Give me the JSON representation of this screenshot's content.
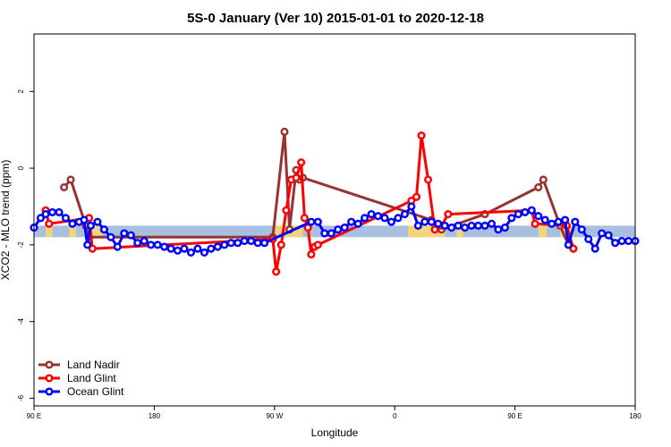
{
  "chart_data": {
    "type": "line",
    "title": "5S-0 January (Ver 10)   2015-01-01 to 2020-12-18",
    "xlabel": "Longitude",
    "ylabel": "XCO2 - MLO trend (ppm)",
    "xlim": [
      -90,
      270
    ],
    "ylim": [
      -6.2,
      3.5
    ],
    "x_ticks": [
      {
        "value": -90,
        "label": "90 E"
      },
      {
        "value": -18,
        "label": "180"
      },
      {
        "value": 54,
        "label": "90 W"
      },
      {
        "value": 126,
        "label": "0"
      },
      {
        "value": 198,
        "label": "90 E"
      },
      {
        "value": 270,
        "label": "180"
      }
    ],
    "y_ticks": [
      {
        "value": 2,
        "label": "2"
      },
      {
        "value": 0,
        "label": "0"
      },
      {
        "value": -2,
        "label": "-2"
      },
      {
        "value": -4,
        "label": "-4"
      },
      {
        "value": -6,
        "label": "-6"
      }
    ],
    "grid": false,
    "legend_position": "bottom-left",
    "band": {
      "y_range": [
        -1.5,
        -1.8
      ],
      "ocean_color": "#a8bfdf",
      "land_color": "#f2d57a"
    },
    "land_segments": [
      [
        -83,
        -79
      ],
      [
        -69,
        -65
      ],
      [
        -56,
        -49
      ],
      [
        53,
        71
      ],
      [
        134,
        156
      ],
      [
        163,
        167
      ],
      [
        212,
        217
      ],
      [
        225,
        233
      ]
    ],
    "series": [
      {
        "name": "Land Nadir",
        "color": "#993333",
        "x": [
          -72,
          -68,
          -59,
          -57,
          53,
          60,
          63,
          67,
          69,
          71,
          148,
          154,
          180,
          212,
          215,
          225,
          230
        ],
        "y": [
          -0.5,
          -0.3,
          -1.5,
          -1.8,
          -1.8,
          0.95,
          -1.6,
          -0.05,
          -0.3,
          -0.25,
          -1.35,
          -1.6,
          -1.2,
          -0.5,
          -0.3,
          -1.5,
          -2.0
        ]
      },
      {
        "name": "Land Glint",
        "color": "#ff0000",
        "x": [
          -83,
          -81,
          -57,
          -55,
          53,
          55,
          58,
          61,
          64,
          67,
          70,
          72,
          74,
          76,
          78,
          80,
          136,
          139,
          142,
          146,
          150,
          154,
          158,
          208,
          210,
          229,
          233
        ],
        "y": [
          -1.1,
          -1.45,
          -1.3,
          -2.1,
          -1.85,
          -2.7,
          -2.0,
          -1.1,
          -0.3,
          -0.25,
          0.15,
          -1.3,
          -1.55,
          -2.25,
          -2.05,
          -2.0,
          -0.85,
          -0.75,
          0.85,
          -0.3,
          -1.6,
          -1.5,
          -1.2,
          -1.1,
          -1.45,
          -1.5,
          -2.1
        ]
      },
      {
        "name": "Ocean Glint",
        "color": "#0000ff",
        "x": [
          -90,
          -86,
          -83,
          -79,
          -75,
          -71,
          -67,
          -63,
          -60,
          -58,
          -56,
          -52,
          -48,
          -44,
          -40,
          -36,
          -32,
          -28,
          -24,
          -20,
          -16,
          -12,
          -8,
          -4,
          0,
          4,
          8,
          12,
          16,
          20,
          24,
          28,
          32,
          36,
          40,
          44,
          48,
          76,
          80,
          84,
          88,
          92,
          96,
          100,
          104,
          108,
          112,
          116,
          120,
          124,
          128,
          132,
          136,
          140,
          144,
          148,
          152,
          156,
          160,
          164,
          168,
          172,
          176,
          180,
          184,
          188,
          192,
          196,
          200,
          204,
          208,
          212,
          216,
          220,
          224,
          228,
          230,
          234,
          238,
          242,
          246,
          250,
          254,
          258,
          262,
          266,
          270
        ],
        "y": [
          -1.55,
          -1.3,
          -1.2,
          -1.15,
          -1.15,
          -1.3,
          -1.45,
          -1.4,
          -1.35,
          -2.0,
          -1.5,
          -1.4,
          -1.6,
          -1.8,
          -2.05,
          -1.7,
          -1.75,
          -1.95,
          -1.9,
          -2.0,
          -2.0,
          -2.05,
          -2.1,
          -2.15,
          -2.1,
          -2.2,
          -2.1,
          -2.2,
          -2.1,
          -2.05,
          -2.0,
          -1.95,
          -1.95,
          -1.9,
          -1.9,
          -1.95,
          -1.95,
          -1.4,
          -1.4,
          -1.7,
          -1.7,
          -1.6,
          -1.55,
          -1.4,
          -1.45,
          -1.3,
          -1.2,
          -1.25,
          -1.3,
          -1.4,
          -1.3,
          -1.2,
          -1.0,
          -1.5,
          -1.4,
          -1.4,
          -1.45,
          -1.5,
          -1.55,
          -1.5,
          -1.55,
          -1.5,
          -1.5,
          -1.5,
          -1.45,
          -1.6,
          -1.55,
          -1.3,
          -1.2,
          -1.15,
          -1.1,
          -1.25,
          -1.35,
          -1.45,
          -1.4,
          -1.35,
          -2.0,
          -1.4,
          -1.6,
          -1.85,
          -2.1,
          -1.7,
          -1.75,
          -1.95,
          -1.9,
          -1.9,
          -1.9
        ]
      }
    ]
  }
}
